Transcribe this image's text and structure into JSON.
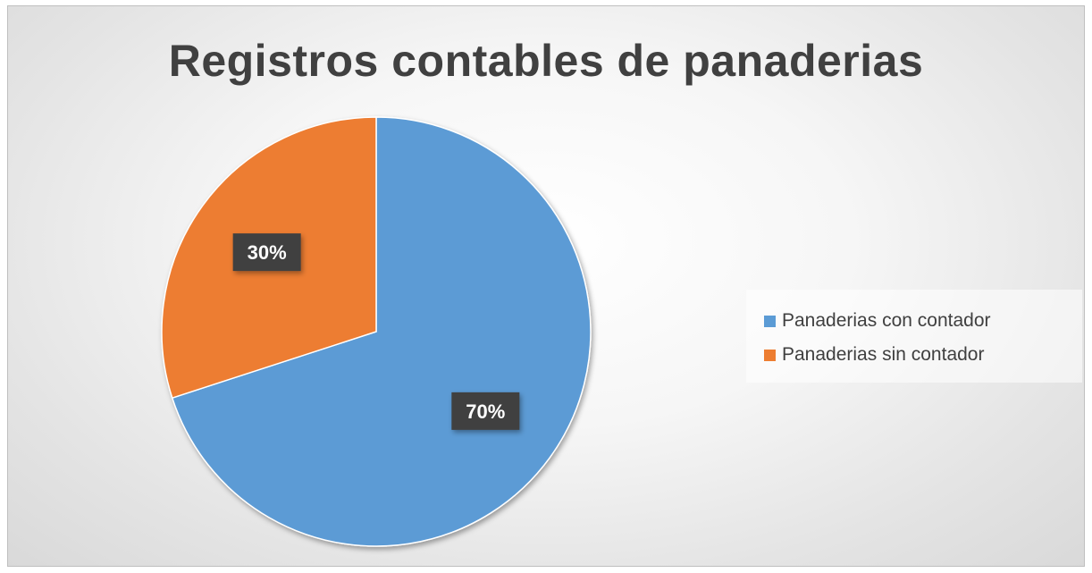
{
  "chart_data": {
    "type": "pie",
    "title": "Registros contables de panaderias",
    "categories": [
      "Panaderias con contador",
      "Panaderias sin contador"
    ],
    "values": [
      70,
      30
    ],
    "data_labels": [
      "70%",
      "30%"
    ],
    "colors": [
      "#5b9bd5",
      "#ed7d31"
    ],
    "legend_position": "right"
  }
}
